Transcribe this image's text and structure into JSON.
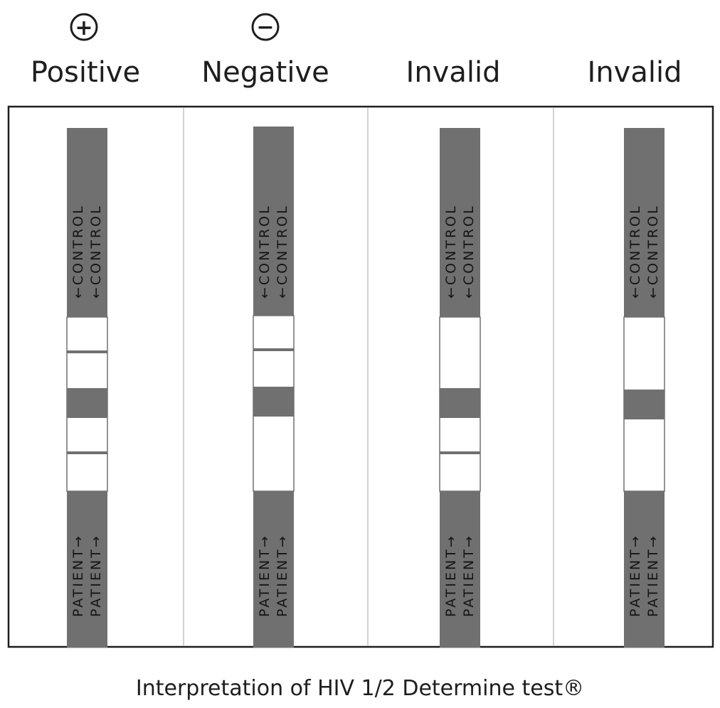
{
  "caption": "Interpretation of HIV 1/2 Determine test®",
  "control_label": "←CONTROL",
  "patient_label": "PATIENT→",
  "colors": {
    "strip_dark": "#707070",
    "strip_light": "#ffffff",
    "result_line": "#707070",
    "frame": "#1e1e1e",
    "divider": "#bdbdbd"
  },
  "strips": [
    {
      "heading": "Positive",
      "symbol": "+",
      "control_line": true,
      "patient_line": true
    },
    {
      "heading": "Negative",
      "symbol": "−",
      "control_line": true,
      "patient_line": false
    },
    {
      "heading": "Invalid",
      "symbol": "",
      "control_line": false,
      "patient_line": true
    },
    {
      "heading": "Invalid",
      "symbol": "",
      "control_line": false,
      "patient_line": false
    }
  ]
}
